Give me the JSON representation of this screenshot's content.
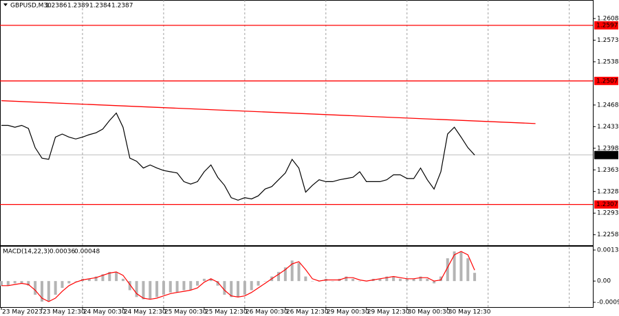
{
  "chart_data": [
    {
      "type": "line",
      "title": "GBPUSD,M30",
      "ohlc": [
        1.2386,
        1.2389,
        1.2384,
        1.2387
      ],
      "values": [
        1.2435,
        1.2435,
        1.2432,
        1.2435,
        1.243,
        1.2399,
        1.2382,
        1.238,
        1.2416,
        1.2421,
        1.2416,
        1.2413,
        1.2416,
        1.242,
        1.2423,
        1.2429,
        1.2443,
        1.2455,
        1.2432,
        1.2382,
        1.2377,
        1.2366,
        1.2371,
        1.2366,
        1.2362,
        1.236,
        1.2358,
        1.2344,
        1.234,
        1.2344,
        1.236,
        1.2371,
        1.2351,
        1.2338,
        1.2318,
        1.2314,
        1.2318,
        1.2316,
        1.2321,
        1.2332,
        1.2336,
        1.2347,
        1.2358,
        1.238,
        1.2366,
        1.2327,
        1.2338,
        1.2347,
        1.2344,
        1.2344,
        1.2347,
        1.2349,
        1.2351,
        1.236,
        1.2344,
        1.2344,
        1.2344,
        1.2347,
        1.2355,
        1.2355,
        1.2349,
        1.2349,
        1.2366,
        1.2347,
        1.2332,
        1.236,
        1.2421,
        1.2432,
        1.2416,
        1.2399,
        1.2387
      ],
      "color": "#000000",
      "ylim": [
        1.2241,
        1.2638
      ],
      "yticks": [
        1.2608,
        1.2573,
        1.2538,
        1.2468,
        1.2433,
        1.2398,
        1.2363,
        1.2328,
        1.2293,
        1.2258
      ],
      "levels": [
        1.2597,
        1.2507,
        1.2307
      ],
      "level_color": "#ff0000",
      "current_price": 1.2387,
      "trendline": {
        "x": [
          0,
          79
        ],
        "y": [
          1.2475,
          1.2438
        ],
        "color": "#ff0000"
      },
      "grid": true
    },
    {
      "type": "bar",
      "title": "MACD(14,22,3)",
      "indicator_values": [
        0.00036,
        0.00048
      ],
      "categories": [
        "23 May 2023",
        null,
        null,
        null,
        null,
        null,
        "23 May 12:30",
        null,
        null,
        null,
        null,
        null,
        "24 May 00:30",
        null,
        null,
        null,
        null,
        null,
        "24 May 12:30",
        null,
        null,
        null,
        null,
        null,
        "25 May 00:30",
        null,
        null,
        null,
        null,
        null,
        "25 May 12:30",
        null,
        null,
        null,
        null,
        null,
        "26 May 00:30",
        null,
        null,
        null,
        null,
        null,
        "26 May 12:30",
        null,
        null,
        null,
        null,
        null,
        "29 May 00:30",
        null,
        null,
        null,
        null,
        null,
        "29 May 12:30",
        null,
        null,
        null,
        null,
        null,
        "30 May 00:30",
        null,
        null,
        null,
        null,
        null,
        "30 May 12:30",
        null,
        null,
        null,
        null
      ],
      "values": [
        -0.0002,
        -0.0002,
        -0.0001,
        -0.0001,
        -0.0002,
        -0.0006,
        -0.0009,
        -0.0009,
        -0.0006,
        -0.0003,
        -0.0001,
        0.0,
        0.0001,
        0.0001,
        0.0002,
        0.0003,
        0.0004,
        0.0004,
        0.0001,
        -0.0004,
        -0.0007,
        -0.0008,
        -0.0008,
        -0.0007,
        -0.0006,
        -0.0005,
        -0.0005,
        -0.0004,
        -0.0004,
        -0.0002,
        0.0001,
        0.0001,
        -0.0002,
        -0.0006,
        -0.0007,
        -0.0007,
        -0.0006,
        -0.0004,
        -0.0002,
        0.0,
        0.0002,
        0.0004,
        0.0006,
        0.0009,
        0.0008,
        0.0002,
        0.0,
        0.0,
        0.0001,
        0.0,
        0.0001,
        0.0002,
        0.0001,
        0.0,
        0.0,
        0.0001,
        0.0001,
        0.0002,
        0.0002,
        0.0001,
        0.0001,
        0.0001,
        0.0002,
        0.0001,
        -0.0001,
        0.0002,
        0.001,
        0.0013,
        0.0013,
        0.001,
        0.00036
      ],
      "color": "#b4b4b4",
      "signal": {
        "values": [
          -0.0002,
          -0.0002,
          -0.00015,
          -0.0001,
          -0.00015,
          -0.0004,
          -0.00075,
          -0.0009,
          -0.00075,
          -0.00045,
          -0.0002,
          -5e-05,
          5e-05,
          0.0001,
          0.00015,
          0.00025,
          0.00035,
          0.0004,
          0.00025,
          -0.00015,
          -0.00055,
          -0.00075,
          -0.0008,
          -0.00075,
          -0.00065,
          -0.00055,
          -0.0005,
          -0.00045,
          -0.0004,
          -0.0003,
          -5e-05,
          0.0001,
          -5e-05,
          -0.0004,
          -0.00065,
          -0.0007,
          -0.00065,
          -0.0005,
          -0.0003,
          -0.0001,
          0.0001,
          0.0003,
          0.0005,
          0.00075,
          0.00085,
          0.0005,
          0.0001,
          0.0,
          5e-05,
          5e-05,
          5e-05,
          0.00015,
          0.00015,
          5e-05,
          0.0,
          5e-05,
          0.0001,
          0.00015,
          0.0002,
          0.00015,
          0.0001,
          0.0001,
          0.00015,
          0.00015,
          0.0,
          5e-05,
          0.0006,
          0.00115,
          0.0013,
          0.00115,
          0.00048
        ],
        "color": "#ff0000"
      },
      "ylim": [
        -0.00114,
        0.00154
      ],
      "yticks": [
        0.00136,
        {
          "value": 0,
          "label": "0.00"
        },
        -0.00093
      ]
    }
  ]
}
